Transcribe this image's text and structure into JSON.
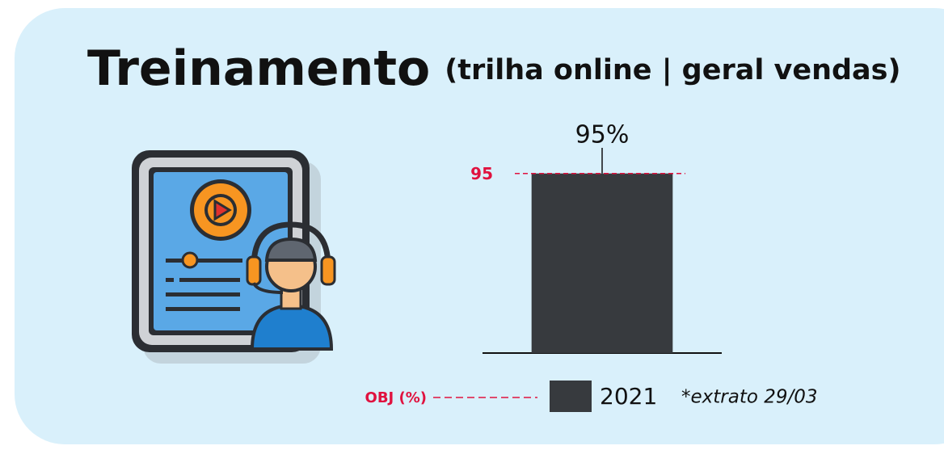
{
  "chart_data": {
    "type": "bar",
    "title": "Treinamento",
    "subtitle": "(trilha online | geral vendas)",
    "categories": [
      null
    ],
    "series": [
      {
        "name": "2021",
        "color": "#373a3e",
        "values": [
          95
        ],
        "value_labels": [
          "95%"
        ]
      }
    ],
    "ylim": [
      0,
      100
    ],
    "target": {
      "name": "OBJ (%)",
      "value": 95,
      "color": "#e0123f"
    },
    "note": "*extrato 29/03"
  }
}
